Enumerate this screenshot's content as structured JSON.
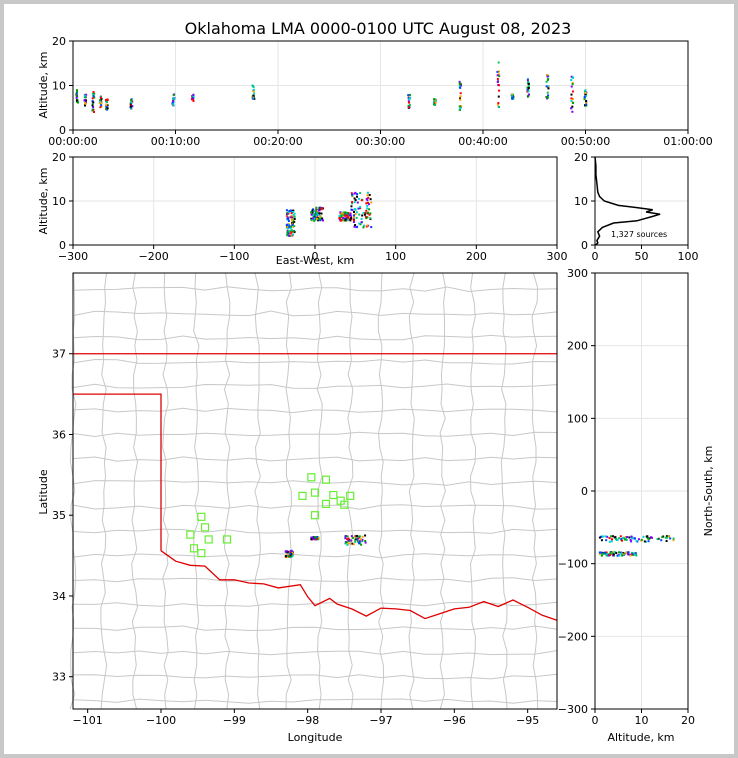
{
  "chart_data": [
    {
      "type": "scatter",
      "id": "time-height",
      "title": "Oklahoma LMA 0000-0100 UTC August 08, 2023",
      "xlabel": "",
      "ylabel": "Altitude, km",
      "xticks": [
        "00:00:00",
        "00:10:00",
        "00:20:00",
        "00:30:00",
        "00:40:00",
        "00:50:00",
        "01:00:00"
      ],
      "yticks": [
        "0",
        "10",
        "20"
      ],
      "xlim": [
        0,
        60
      ],
      "ylim": [
        0,
        20
      ],
      "grid": true,
      "clusters": [
        {
          "x": 0.4,
          "y": [
            6,
            9
          ]
        },
        {
          "x": 1.2,
          "y": [
            5.5,
            8
          ]
        },
        {
          "x": 2.0,
          "y": [
            4,
            9
          ]
        },
        {
          "x": 2.7,
          "y": [
            5,
            7.5
          ]
        },
        {
          "x": 3.3,
          "y": [
            4.5,
            7
          ]
        },
        {
          "x": 5.7,
          "y": [
            4.5,
            7
          ]
        },
        {
          "x": 9.8,
          "y": [
            5.5,
            8
          ]
        },
        {
          "x": 11.7,
          "y": [
            6.5,
            8
          ]
        },
        {
          "x": 17.6,
          "y": [
            7,
            10
          ]
        },
        {
          "x": 32.8,
          "y": [
            4.5,
            8
          ]
        },
        {
          "x": 35.3,
          "y": [
            5.5,
            7
          ]
        },
        {
          "x": 37.8,
          "y": [
            4.5,
            11
          ]
        },
        {
          "x": 41.5,
          "y": [
            4,
            16
          ]
        },
        {
          "x": 42.9,
          "y": [
            7,
            8
          ]
        },
        {
          "x": 44.4,
          "y": [
            7.5,
            12
          ]
        },
        {
          "x": 46.3,
          "y": [
            7,
            12.5
          ]
        },
        {
          "x": 48.7,
          "y": [
            4,
            12.5
          ]
        },
        {
          "x": 50.0,
          "y": [
            5,
            9
          ]
        }
      ]
    },
    {
      "type": "scatter",
      "id": "ew-height",
      "xlabel": "East-West, km",
      "ylabel": "Altitude, km",
      "xticks": [
        "−300",
        "−200",
        "−100",
        "0",
        "100",
        "200",
        "300"
      ],
      "yticks": [
        "0",
        "10",
        "20"
      ],
      "xlim": [
        -300,
        300
      ],
      "ylim": [
        0,
        20
      ],
      "grid": true,
      "clusters": [
        {
          "x": [
            -35,
            -25
          ],
          "y": [
            2,
            8
          ]
        },
        {
          "x": [
            -5,
            10
          ],
          "y": [
            5.5,
            8.5
          ]
        },
        {
          "x": [
            30,
            45
          ],
          "y": [
            5.5,
            7.5
          ]
        },
        {
          "x": [
            45,
            70
          ],
          "y": [
            4,
            12
          ]
        }
      ]
    },
    {
      "type": "line",
      "id": "altitude-histogram",
      "annotation": "1,327 sources",
      "xticks": [
        "0",
        "50",
        "100"
      ],
      "yticks": [
        "0",
        "10",
        "20"
      ],
      "xlim": [
        0,
        100
      ],
      "ylim": [
        0,
        20
      ],
      "grid": true,
      "points": [
        [
          1,
          0
        ],
        [
          3,
          0.5
        ],
        [
          2,
          1
        ],
        [
          5,
          2
        ],
        [
          3,
          3
        ],
        [
          8,
          4
        ],
        [
          20,
          5
        ],
        [
          45,
          5.5
        ],
        [
          62,
          6.5
        ],
        [
          70,
          7
        ],
        [
          55,
          7.5
        ],
        [
          62,
          8
        ],
        [
          45,
          8.5
        ],
        [
          25,
          9
        ],
        [
          10,
          10
        ],
        [
          5,
          11
        ],
        [
          3,
          12
        ],
        [
          2,
          14
        ],
        [
          1,
          16
        ],
        [
          1,
          18
        ],
        [
          0,
          20
        ]
      ]
    },
    {
      "type": "map",
      "id": "plan-view",
      "xlabel": "Longitude",
      "ylabel": "Latitude",
      "xticks": [
        "−101",
        "−100",
        "−99",
        "−98",
        "−97",
        "−96",
        "−95"
      ],
      "yticks": [
        "33",
        "34",
        "35",
        "36",
        "37"
      ],
      "xlim": [
        -101.2,
        -94.6
      ],
      "ylim": [
        32.6,
        38.0
      ],
      "stations": [
        [
          -97.95,
          35.47
        ],
        [
          -97.75,
          35.44
        ],
        [
          -98.07,
          35.24
        ],
        [
          -97.9,
          35.28
        ],
        [
          -97.65,
          35.25
        ],
        [
          -97.55,
          35.18
        ],
        [
          -97.42,
          35.24
        ],
        [
          -97.75,
          35.14
        ],
        [
          -97.5,
          35.13
        ],
        [
          -97.9,
          35.0
        ],
        [
          -99.45,
          34.98
        ],
        [
          -99.4,
          34.85
        ],
        [
          -99.6,
          34.76
        ],
        [
          -99.35,
          34.7
        ],
        [
          -99.1,
          34.7
        ],
        [
          -99.55,
          34.59
        ],
        [
          -99.45,
          34.53
        ]
      ],
      "source_clusters": [
        {
          "lon": [
            -98.3,
            -98.2
          ],
          "lat": [
            34.48,
            34.56
          ]
        },
        {
          "lon": [
            -97.95,
            -97.85
          ],
          "lat": [
            34.7,
            34.73
          ]
        },
        {
          "lon": [
            -97.5,
            -97.2
          ],
          "lat": [
            34.63,
            34.75
          ]
        }
      ]
    },
    {
      "type": "scatter",
      "id": "ns-height",
      "xlabel": "Altitude, km",
      "ylabel": "North-South, km",
      "xticks": [
        "0",
        "10",
        "20"
      ],
      "yticks": [
        "−300",
        "−200",
        "−100",
        "0",
        "100",
        "200",
        "300"
      ],
      "xlim": [
        0,
        20
      ],
      "ylim": [
        -300,
        300
      ],
      "grid": true,
      "clusters": [
        {
          "x": [
            1,
            17
          ],
          "y": [
            -70,
            -62
          ]
        },
        {
          "x": [
            1,
            9
          ],
          "y": [
            -89,
            -84
          ]
        }
      ]
    }
  ],
  "colors": {
    "border_line": "#e00000",
    "county_lines": "#c8c8c8",
    "station_marker": "#66ee33",
    "grid": "#e6e6e6"
  }
}
